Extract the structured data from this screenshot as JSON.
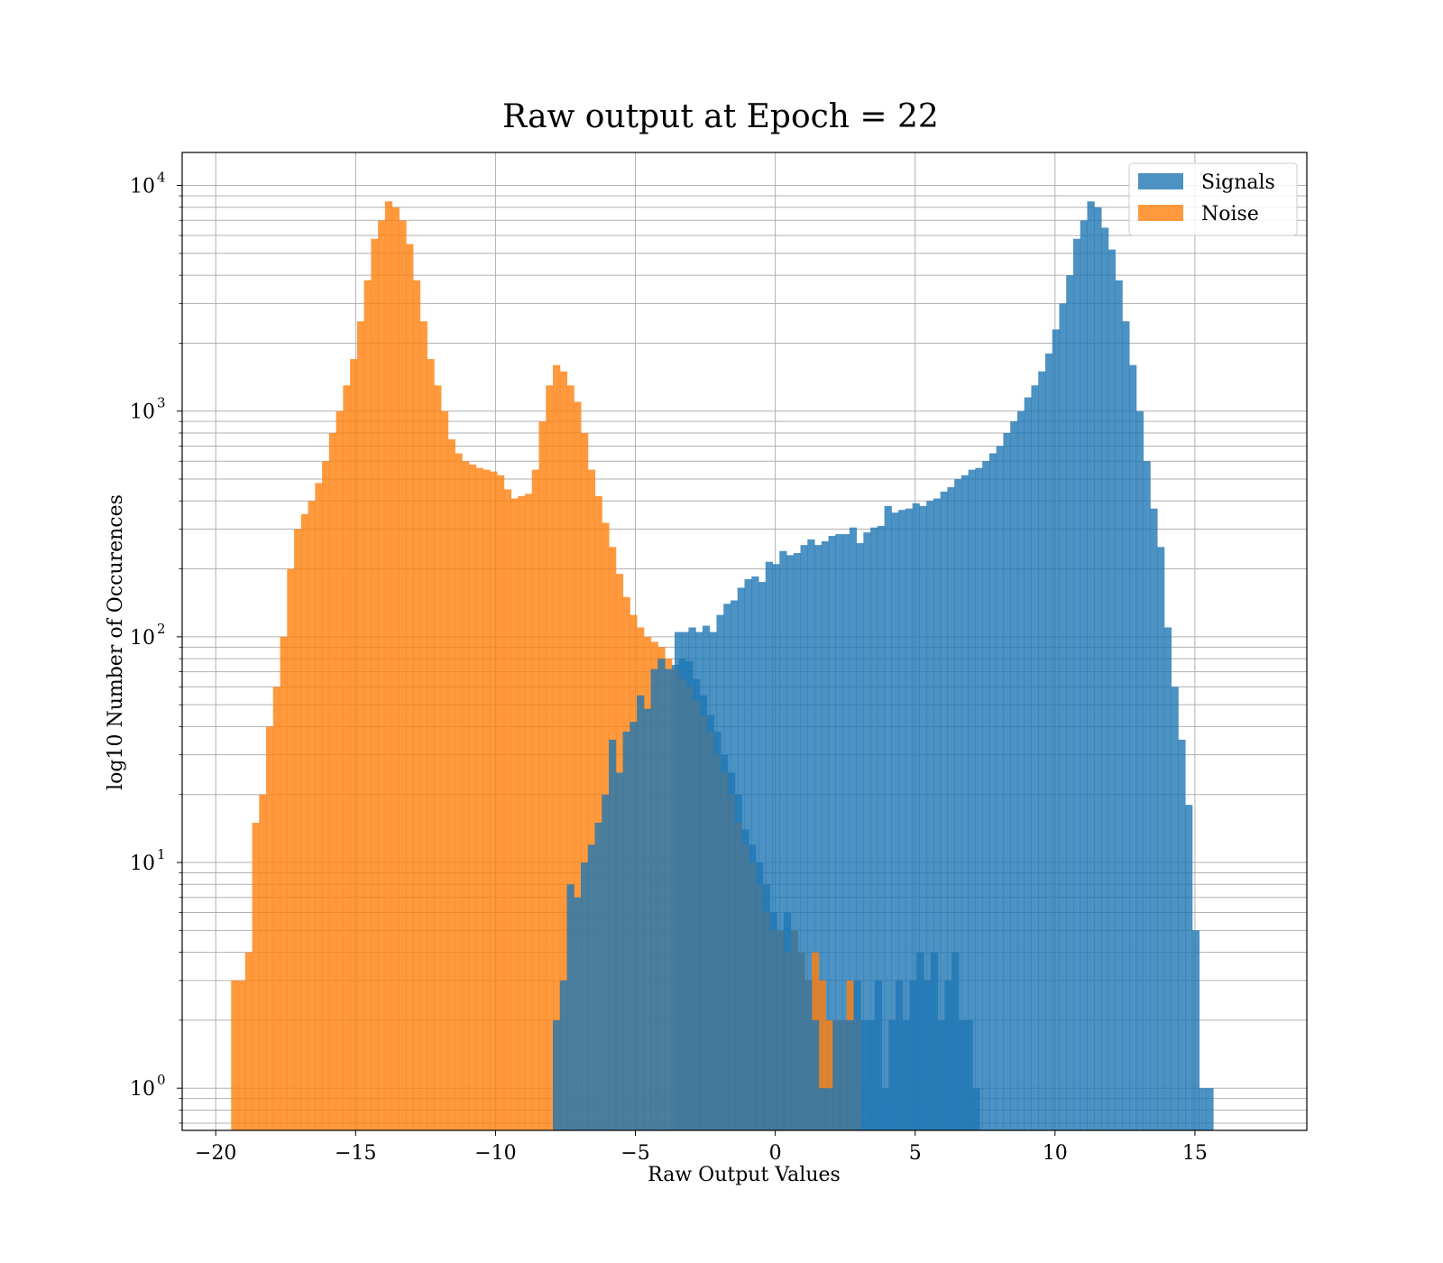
{
  "chart_data": {
    "type": "histogram",
    "title": "Raw output at Epoch = 22",
    "xlabel": "Raw Output Values",
    "ylabel": "log10 Number of Occurences",
    "xlim": [
      -21.2,
      19.0
    ],
    "ylim": [
      0.65,
      14000
    ],
    "yscale": "log",
    "grid": true,
    "legend_position": "top-right",
    "x_ticks": [
      -20,
      -15,
      -10,
      -5,
      0,
      5,
      10,
      15
    ],
    "x_tick_labels": [
      "−20",
      "−15",
      "−10",
      "−5",
      "0",
      "5",
      "10",
      "15"
    ],
    "y_ticks": [
      1,
      10,
      100,
      1000,
      10000
    ],
    "y_tick_labels": [
      {
        "base": "10",
        "exp": "0"
      },
      {
        "base": "10",
        "exp": "1"
      },
      {
        "base": "10",
        "exp": "2"
      },
      {
        "base": "10",
        "exp": "3"
      },
      {
        "base": "10",
        "exp": "4"
      }
    ],
    "series": [
      {
        "name": "Signals",
        "color": "#1f77b4",
        "opacity": 0.8,
        "bin_start": -3.6,
        "bin_width": 0.25,
        "counts": [
          105,
          105,
          110,
          105,
          112,
          105,
          125,
          140,
          145,
          165,
          180,
          185,
          175,
          215,
          210,
          240,
          230,
          235,
          255,
          270,
          255,
          265,
          280,
          285,
          285,
          305,
          260,
          290,
          305,
          310,
          380,
          355,
          365,
          370,
          390,
          380,
          400,
          410,
          440,
          460,
          500,
          520,
          550,
          560,
          600,
          650,
          700,
          800,
          900,
          1000,
          1150,
          1300,
          1500,
          1800,
          2300,
          3000,
          4000,
          5800,
          7000,
          8500,
          8000,
          6500,
          5200,
          3800,
          2500,
          1600,
          1000,
          600,
          370,
          250,
          110,
          60,
          35,
          18,
          5,
          1,
          1
        ]
      },
      {
        "name": "Noise",
        "color": "#ff7f0e",
        "opacity": 0.8,
        "bin_start": -19.45,
        "bin_width": 0.25,
        "counts": [
          3,
          3,
          4,
          15,
          20,
          40,
          60,
          100,
          200,
          300,
          350,
          400,
          480,
          600,
          800,
          1000,
          1300,
          1700,
          2500,
          3800,
          5800,
          7000,
          8500,
          8000,
          7000,
          5500,
          3800,
          2500,
          1700,
          1300,
          1000,
          750,
          650,
          600,
          580,
          560,
          550,
          540,
          520,
          450,
          410,
          420,
          430,
          550,
          900,
          1300,
          1600,
          1500,
          1300,
          1100,
          800,
          550,
          420,
          320,
          250,
          190,
          150,
          125,
          110,
          100,
          95,
          90,
          80,
          72,
          65,
          60,
          52,
          45,
          38,
          30,
          25,
          20,
          15,
          12,
          10,
          8,
          6,
          5,
          5,
          4,
          5,
          4,
          3,
          4,
          3,
          2,
          2,
          2,
          3,
          2
        ]
      },
      {
        "name": "",
        "color": "#1f77b4",
        "opacity": 0.8,
        "bin_start": -7.95,
        "bin_width": 0.25,
        "counts": [
          2,
          3,
          8,
          7,
          10,
          12,
          15,
          20,
          35,
          25,
          38,
          42,
          55,
          48,
          72,
          80,
          72,
          75,
          80,
          78,
          65,
          55,
          45,
          38,
          30,
          25,
          20,
          14,
          12,
          10,
          8,
          6,
          5,
          6,
          5,
          4,
          3,
          2,
          1,
          1,
          2,
          2,
          2,
          3,
          2,
          2,
          3,
          1,
          2,
          3,
          2,
          3,
          4,
          3,
          4,
          2,
          3,
          4,
          2,
          2,
          1
        ]
      }
    ]
  }
}
